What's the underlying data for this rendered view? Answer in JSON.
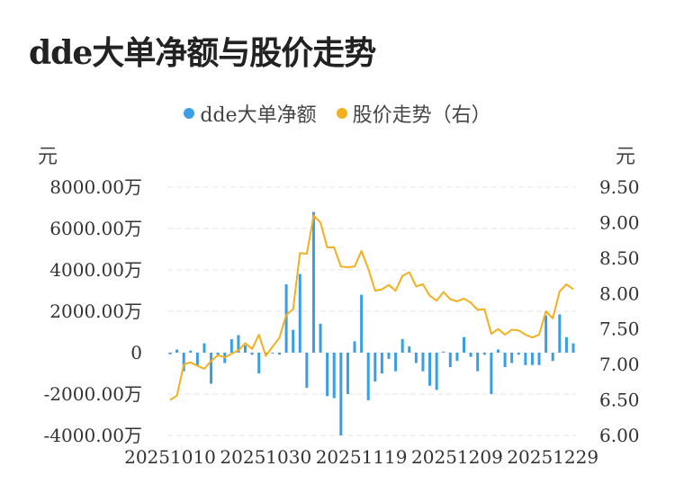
{
  "title": "dde大单净额与股价走势",
  "legend": [
    {
      "label": "dde大单净额",
      "color": "#3a9ee4"
    },
    {
      "label": "股价走势（右）",
      "color": "#f2b01e"
    }
  ],
  "units": {
    "left": "元",
    "right": "元"
  },
  "chart_data": {
    "type": "bar+line",
    "title": "dde大单净额与股价走势",
    "left_axis": {
      "unit": "元",
      "range": [
        -4000,
        8000
      ],
      "ticks": [
        8000,
        6000,
        4000,
        2000,
        0,
        -2000,
        -4000
      ],
      "tick_labels": [
        "8000.00万",
        "6000.00万",
        "4000.00万",
        "2000.00万",
        "0",
        "-2000.00万",
        "-4000.00万"
      ]
    },
    "right_axis": {
      "unit": "元",
      "range": [
        6.0,
        9.5
      ],
      "ticks": [
        9.5,
        9.0,
        8.5,
        8.0,
        7.5,
        7.0,
        6.5,
        6.0
      ],
      "tick_labels": [
        "9.50",
        "9.00",
        "8.50",
        "8.00",
        "7.50",
        "7.00",
        "6.50",
        "6.00"
      ]
    },
    "x_tick_labels": [
      {
        "label": "20251010",
        "index": 0
      },
      {
        "label": "20251030",
        "index": 14
      },
      {
        "label": "20251119",
        "index": 28
      },
      {
        "label": "20251209",
        "index": 42
      },
      {
        "label": "20251229",
        "index": 56
      }
    ],
    "grid": true,
    "legend_position": "top-center",
    "series": [
      {
        "name": "dde大单净额",
        "type": "bar",
        "axis": "left",
        "color": "#3a9ee4",
        "values": [
          -80,
          150,
          -900,
          100,
          -600,
          450,
          -1500,
          -100,
          -500,
          650,
          850,
          350,
          -100,
          -1000,
          -50,
          0,
          -100,
          3300,
          1100,
          3800,
          -1700,
          6800,
          1400,
          -2100,
          -2200,
          -4000,
          -2000,
          550,
          2800,
          -2300,
          -1400,
          -1000,
          -300,
          -900,
          650,
          300,
          -500,
          -900,
          -1600,
          -1800,
          50,
          -700,
          -400,
          750,
          -200,
          -900,
          -100,
          -2000,
          150,
          -700,
          -500,
          -100,
          -600,
          -600,
          -600,
          1800,
          -400,
          1850,
          750,
          450
        ]
      },
      {
        "name": "股价走势（右）",
        "type": "line",
        "axis": "right",
        "color": "#f2b01e",
        "values": [
          6.5,
          6.56,
          7.0,
          7.03,
          6.98,
          6.94,
          7.05,
          7.13,
          7.1,
          7.15,
          7.2,
          7.3,
          7.22,
          7.42,
          7.12,
          7.25,
          7.38,
          7.7,
          7.78,
          8.57,
          8.56,
          9.1,
          9.0,
          8.65,
          8.65,
          8.38,
          8.37,
          8.38,
          8.6,
          8.35,
          8.04,
          8.06,
          8.12,
          8.04,
          8.25,
          8.3,
          8.1,
          8.13,
          7.97,
          7.9,
          8.02,
          7.92,
          7.89,
          7.93,
          7.87,
          7.77,
          7.78,
          7.43,
          7.5,
          7.42,
          7.49,
          7.48,
          7.42,
          7.38,
          7.42,
          7.75,
          7.65,
          8.03,
          8.13,
          8.06
        ]
      }
    ]
  }
}
